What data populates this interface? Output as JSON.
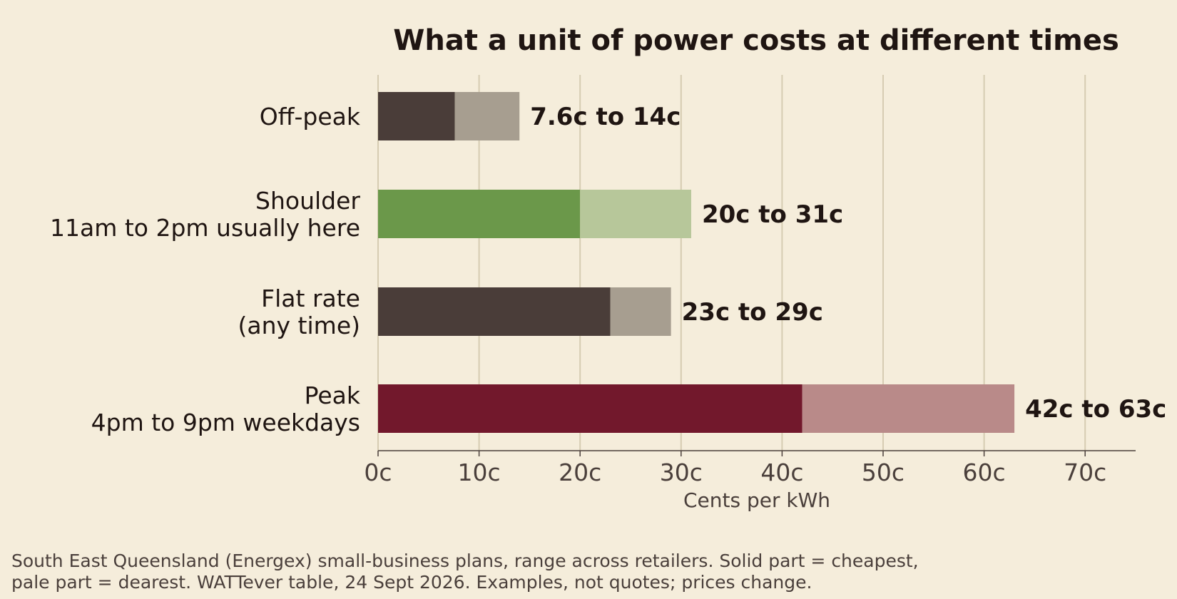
{
  "chart_data": {
    "type": "bar",
    "orientation": "horizontal",
    "stacking": "range",
    "title": "What a unit of power costs at different times",
    "xlabel": "Cents per kWh",
    "ylabel": "",
    "xlim": [
      0,
      75
    ],
    "x_ticks": [
      0,
      10,
      20,
      30,
      40,
      50,
      60,
      70
    ],
    "x_tick_labels": [
      "0c",
      "10c",
      "20c",
      "30c",
      "40c",
      "50c",
      "60c",
      "70c"
    ],
    "grid": "vertical",
    "legend": "none",
    "categories": [
      {
        "lines": [
          "Off-peak"
        ],
        "low": 7.6,
        "high": 14,
        "label": "7.6c to 14c",
        "color_solid": "#4a3d39",
        "color_pale": "#a79e90"
      },
      {
        "lines": [
          "Shoulder",
          "11am to 2pm usually here"
        ],
        "low": 20,
        "high": 31,
        "label": "20c to 31c",
        "color_solid": "#6b984a",
        "color_pale": "#b7c79a"
      },
      {
        "lines": [
          "Flat rate",
          "(any time)"
        ],
        "low": 23,
        "high": 29,
        "label": "23c to 29c",
        "color_solid": "#4a3d39",
        "color_pale": "#a79e90"
      },
      {
        "lines": [
          "Peak",
          "4pm to 9pm weekdays"
        ],
        "low": 42,
        "high": 63,
        "label": "42c to 63c",
        "color_solid": "#72182c",
        "color_pale": "#b98a89"
      }
    ]
  },
  "footnote": [
    "South East Queensland (Energex) small-business plans, range across retailers. Solid part = cheapest,",
    "pale part = dearest. WATTever table, 24 Sept 2026. Examples, not quotes; prices change."
  ]
}
